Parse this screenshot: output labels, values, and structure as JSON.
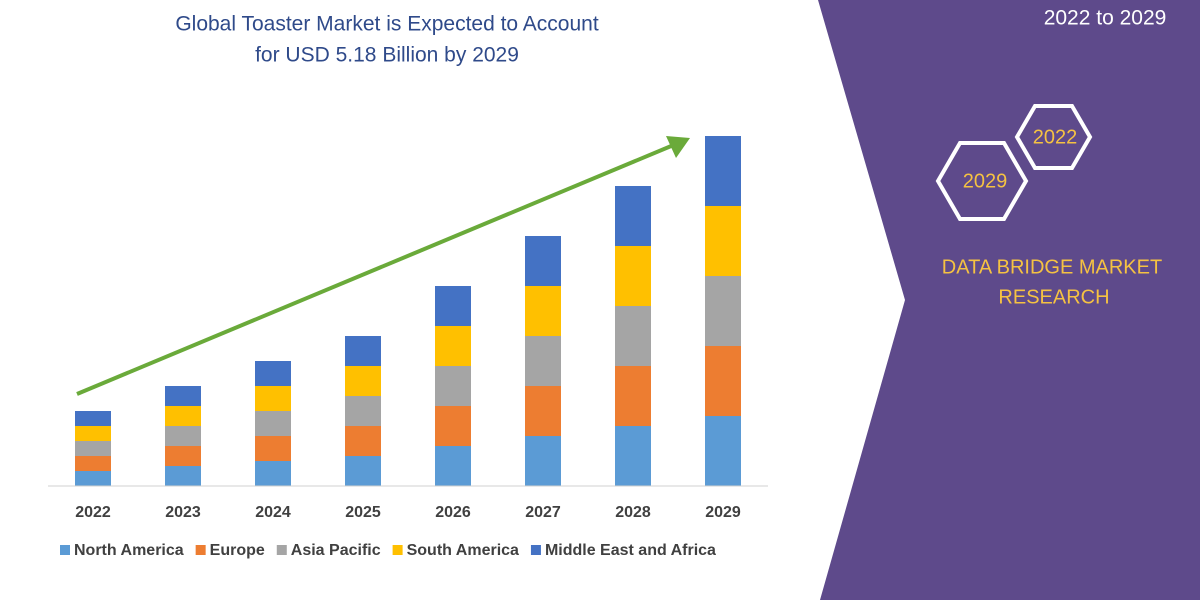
{
  "chart_data": {
    "type": "stacked_bar",
    "title": [
      "Global Toaster Market is Expected to Account",
      "for USD 5.18 Billion by 2029"
    ],
    "categories": [
      "2022",
      "2023",
      "2024",
      "2025",
      "2026",
      "2027",
      "2028",
      "2029"
    ],
    "series": [
      {
        "name": "North America",
        "color": "#5b9bd5",
        "values": [
          15,
          20,
          25,
          30,
          40,
          50,
          60,
          70
        ]
      },
      {
        "name": "Europe",
        "color": "#ed7d31",
        "values": [
          15,
          20,
          25,
          30,
          40,
          50,
          60,
          70
        ]
      },
      {
        "name": "Asia Pacific",
        "color": "#a5a5a5",
        "values": [
          15,
          20,
          25,
          30,
          40,
          50,
          60,
          70
        ]
      },
      {
        "name": "South America",
        "color": "#ffc000",
        "values": [
          15,
          20,
          25,
          30,
          40,
          50,
          60,
          70
        ]
      },
      {
        "name": "Middle East and Africa",
        "color": "#4472c4",
        "values": [
          15,
          20,
          25,
          30,
          40,
          50,
          60,
          70
        ]
      }
    ],
    "ylim": [
      0,
      350
    ],
    "legend": "bottom"
  },
  "period": "2022 to 2029",
  "badges": [
    "2022",
    "2029"
  ],
  "brand": [
    "DATA BRIDGE MARKET",
    "RESEARCH"
  ]
}
